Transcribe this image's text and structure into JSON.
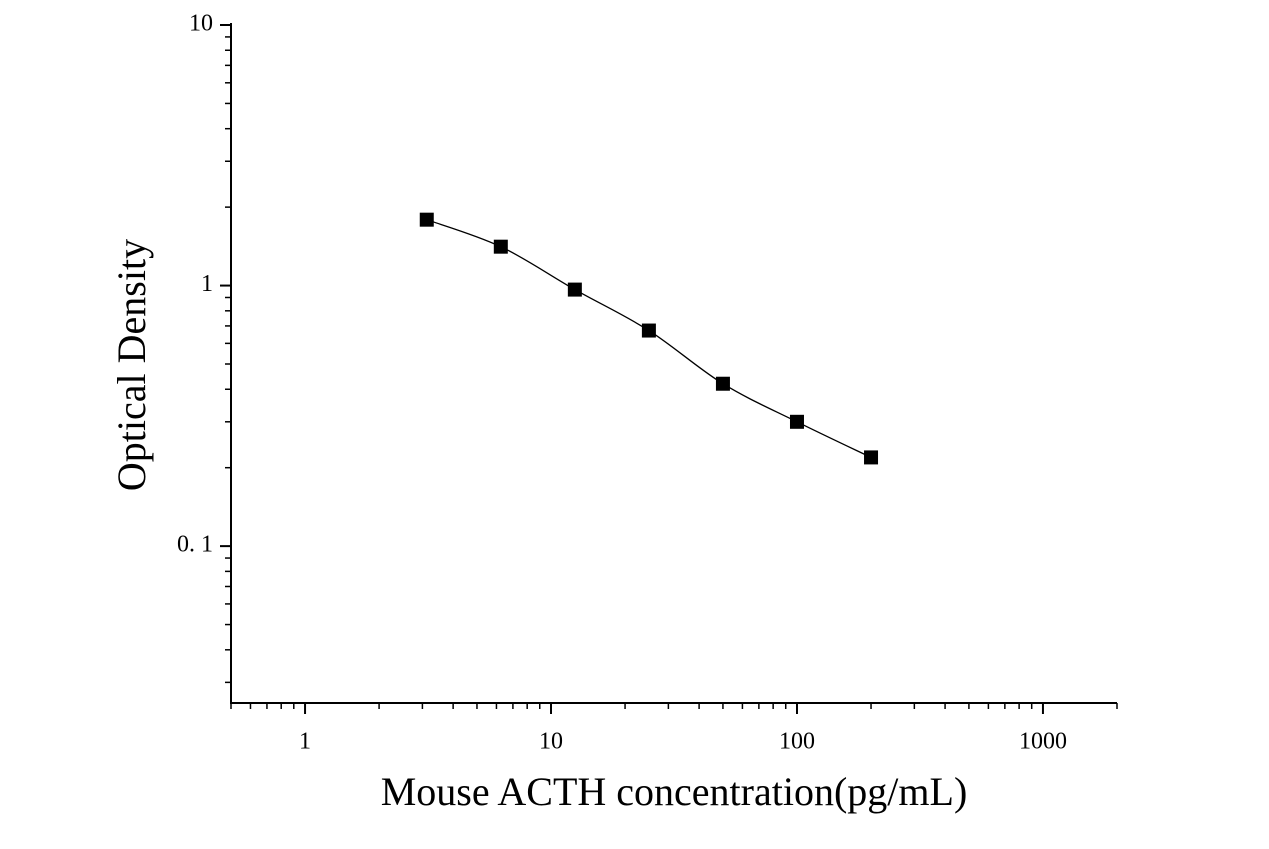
{
  "chart_data": {
    "type": "scatter",
    "x_label": "Mouse ACTH concentration(pg/mL)",
    "y_label": "Optical Density",
    "x_log": true,
    "y_log": true,
    "color": "#000000",
    "x": [
      3.125,
      6.25,
      12.5,
      25,
      50,
      100,
      200
    ],
    "values": [
      1.79,
      1.41,
      0.965,
      0.672,
      0.42,
      0.3,
      0.219
    ],
    "xlim": [
      0.5,
      2000
    ],
    "ylim": [
      0.025,
      10
    ],
    "xticks": [
      1,
      10,
      100,
      1000
    ],
    "yticks": [
      {
        "value": 0.1,
        "label": "0. 1"
      },
      1,
      10
    ],
    "xminorticks": [
      0.5,
      0.6,
      0.7,
      0.8,
      0.9,
      2,
      3,
      4,
      5,
      6,
      7,
      8,
      9,
      20,
      30,
      40,
      50,
      60,
      70,
      80,
      90,
      200,
      300,
      400,
      500,
      600,
      700,
      800,
      900,
      2000
    ],
    "yminorticks": [
      0.03,
      0.04,
      0.05,
      0.06,
      0.07,
      0.08,
      0.09,
      0.2,
      0.3,
      0.4,
      0.5,
      0.6,
      0.7,
      0.8,
      0.9,
      2,
      3,
      4,
      5,
      6,
      7,
      8,
      9
    ],
    "fit_line": true
  }
}
